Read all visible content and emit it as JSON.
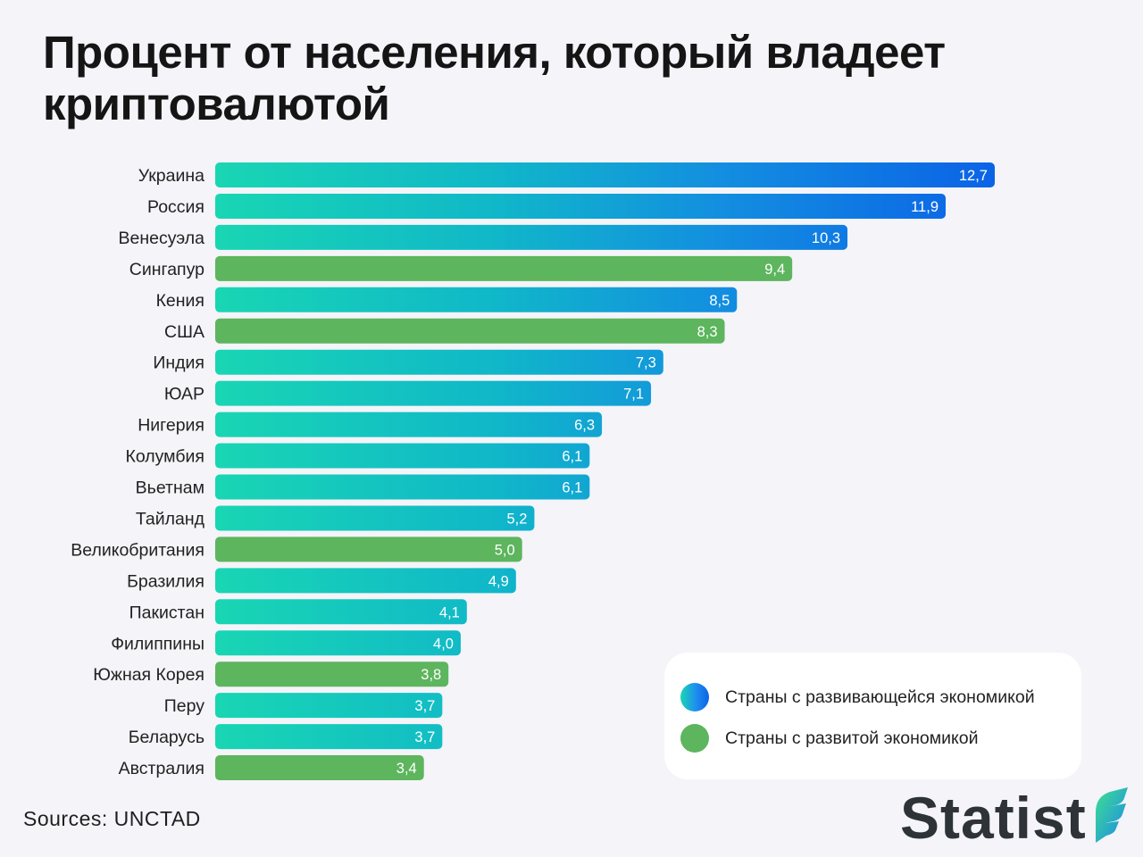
{
  "title": "Процент от населения, который владеет криптовалютой",
  "chart_data": {
    "type": "bar",
    "orientation": "horizontal",
    "categories": [
      "Украина",
      "Россия",
      "Венесуэла",
      "Сингапур",
      "Кения",
      "США",
      "Индия",
      "ЮАР",
      "Нигерия",
      "Колумбия",
      "Вьетнам",
      "Тайланд",
      "Великобритания",
      "Бразилия",
      "Пакистан",
      "Филиппины",
      "Южная Корея",
      "Перу",
      "Беларусь",
      "Австралия"
    ],
    "values": [
      12.7,
      11.9,
      10.3,
      9.4,
      8.5,
      8.3,
      7.3,
      7.1,
      6.3,
      6.1,
      6.1,
      5.2,
      5.0,
      4.9,
      4.1,
      4.0,
      3.8,
      3.7,
      3.7,
      3.4
    ],
    "value_labels": [
      "12,7",
      "11,9",
      "10,3",
      "9,4",
      "8,5",
      "8,3",
      "7,3",
      "7,1",
      "6,3",
      "6,1",
      "6,1",
      "5,2",
      "5,0",
      "4,9",
      "4,1",
      "4,0",
      "3,8",
      "3,7",
      "3,7",
      "3,4"
    ],
    "groups": [
      "developing",
      "developing",
      "developing",
      "developed",
      "developing",
      "developed",
      "developing",
      "developing",
      "developing",
      "developing",
      "developing",
      "developing",
      "developed",
      "developing",
      "developing",
      "developing",
      "developed",
      "developing",
      "developing",
      "developed"
    ],
    "series": [
      {
        "name": "Страны с развивающейся экономикой",
        "key": "developing",
        "color": "#1f8ef0"
      },
      {
        "name": "Страны с развитой экономикой",
        "key": "developed",
        "color": "#5db55d"
      }
    ],
    "xlim": [
      0,
      12.7
    ],
    "grid": false,
    "legend_position": "bottom-right"
  },
  "colors": {
    "developing_start": "#19d6b3",
    "developing_end": "#0b63e6",
    "developed": "#5db55d",
    "background": "#f4f4f9"
  },
  "legend": {
    "developing": "Страны с развивающейся экономикой",
    "developed": "Страны с развитой экономикой"
  },
  "source": "Sources: UNCTAD",
  "brand": "Statist"
}
